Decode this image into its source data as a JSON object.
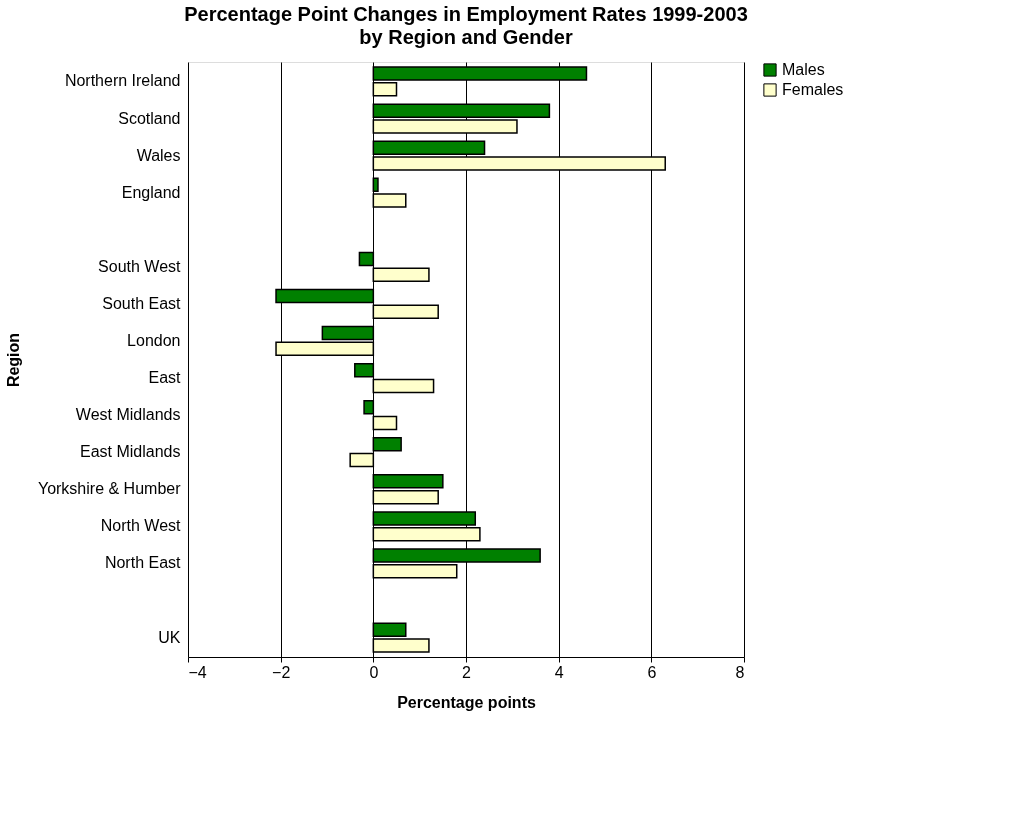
{
  "chart_data": {
    "type": "bar",
    "orientation": "horizontal",
    "title": "Percentage Point Changes in Employment Rates 1999-2003",
    "subtitle": "by Region and Gender",
    "xlabel": "Percentage points",
    "ylabel": "Region",
    "categories": [
      "Northern Ireland",
      "Scotland",
      "Wales",
      "England",
      null,
      "South West",
      "South East",
      "London",
      "East",
      "West Midlands",
      "East Midlands",
      "Yorkshire & Humber",
      "North West",
      "North East",
      null,
      "UK"
    ],
    "series": [
      {
        "name": "Males",
        "color": "#008000",
        "values": [
          4.6,
          3.8,
          2.4,
          0.1,
          null,
          -0.3,
          -2.1,
          -1.1,
          -0.4,
          -0.2,
          0.6,
          1.5,
          2.2,
          3.6,
          null,
          0.7
        ]
      },
      {
        "name": "Females",
        "color": "#ffffcc",
        "values": [
          0.5,
          3.1,
          6.3,
          0.7,
          null,
          1.2,
          1.4,
          -2.1,
          1.3,
          0.5,
          -0.5,
          1.4,
          2.3,
          1.8,
          null,
          1.2
        ]
      }
    ],
    "xlim": [
      -4,
      8
    ],
    "xticks": [
      -4,
      -2,
      0,
      2,
      4,
      6,
      8
    ],
    "grid": "x",
    "legend": "right"
  }
}
